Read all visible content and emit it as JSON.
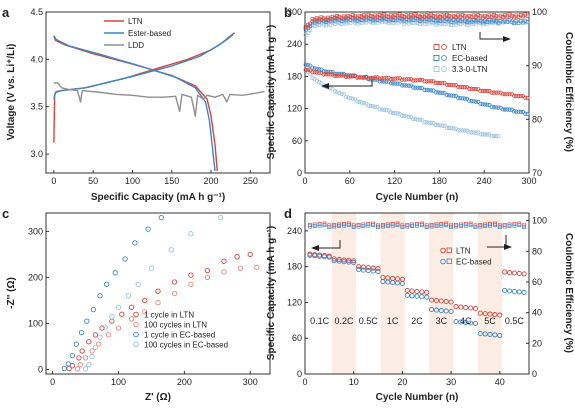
{
  "chart_data": [
    {
      "panel": "a",
      "type": "line",
      "xlabel": "Specific Capacity  (mA h g⁻¹)",
      "ylabel": "Voltage  (V vs. Li⁺/Li)",
      "xlim": [
        -10,
        275
      ],
      "ylim": [
        2.8,
        4.5
      ],
      "xticks": [
        0,
        50,
        100,
        150,
        200,
        250
      ],
      "yticks": [
        3.0,
        3.5,
        4.0,
        4.5
      ],
      "legend": "top-center",
      "series": [
        {
          "name": "LTN",
          "color": "#d8443a",
          "segments": [
            [
              [
                0,
                3.12
              ],
              [
                1,
                3.62
              ],
              [
                3,
                3.66
              ],
              [
                10,
                3.67
              ],
              [
                40,
                3.7
              ],
              [
                90,
                3.8
              ],
              [
                130,
                3.9
              ],
              [
                170,
                4.0
              ],
              [
                200,
                4.1
              ],
              [
                215,
                4.18
              ],
              [
                225,
                4.25
              ],
              [
                230,
                4.28
              ]
            ],
            [
              [
                0,
                4.25
              ],
              [
                2,
                4.2
              ],
              [
                15,
                4.15
              ],
              [
                50,
                4.06
              ],
              [
                100,
                3.95
              ],
              [
                150,
                3.83
              ],
              [
                180,
                3.72
              ],
              [
                195,
                3.58
              ],
              [
                200,
                3.4
              ],
              [
                205,
                3.1
              ],
              [
                208,
                2.82
              ]
            ]
          ]
        },
        {
          "name": "Ester-based",
          "color": "#3a86c8",
          "segments": [
            [
              [
                0,
                3.58
              ],
              [
                2,
                3.65
              ],
              [
                10,
                3.67
              ],
              [
                40,
                3.7
              ],
              [
                100,
                3.82
              ],
              [
                150,
                3.93
              ],
              [
                185,
                4.03
              ],
              [
                210,
                4.15
              ],
              [
                222,
                4.22
              ],
              [
                228,
                4.26
              ]
            ],
            [
              [
                0,
                4.25
              ],
              [
                3,
                4.21
              ],
              [
                20,
                4.14
              ],
              [
                60,
                4.05
              ],
              [
                110,
                3.93
              ],
              [
                155,
                3.81
              ],
              [
                180,
                3.7
              ],
              [
                193,
                3.55
              ],
              [
                198,
                3.35
              ],
              [
                202,
                3.05
              ],
              [
                205,
                2.82
              ]
            ]
          ]
        },
        {
          "name": "LDD",
          "color": "#8f8f8f",
          "segments": [
            [
              [
                0,
                3.75
              ],
              [
                5,
                3.75
              ],
              [
                10,
                3.7
              ],
              [
                20,
                3.68
              ],
              [
                30,
                3.67
              ],
              [
                34,
                3.55
              ],
              [
                36,
                3.67
              ],
              [
                60,
                3.65
              ],
              [
                80,
                3.63
              ],
              [
                100,
                3.62
              ],
              [
                120,
                3.6
              ],
              [
                140,
                3.6
              ],
              [
                155,
                3.61
              ],
              [
                160,
                3.45
              ],
              [
                163,
                3.63
              ],
              [
                175,
                3.6
              ],
              [
                180,
                3.4
              ],
              [
                183,
                3.62
              ],
              [
                190,
                3.58
              ],
              [
                195,
                3.62
              ],
              [
                205,
                3.6
              ],
              [
                215,
                3.63
              ],
              [
                220,
                3.55
              ],
              [
                224,
                3.63
              ],
              [
                240,
                3.62
              ],
              [
                255,
                3.64
              ],
              [
                268,
                3.66
              ]
            ]
          ]
        }
      ]
    },
    {
      "panel": "b",
      "type": "scatter",
      "xlabel": "Cycle Number (n)",
      "ylabel": "Specific Capacity (mA h g⁻¹)",
      "ylabel_right": "Coulombic Efficiency (%)",
      "xlim": [
        0,
        300
      ],
      "ylim": [
        0,
        300
      ],
      "ylim_right": [
        70,
        100
      ],
      "xticks": [
        0,
        60,
        120,
        180,
        240,
        300
      ],
      "yticks": [
        0,
        60,
        120,
        180,
        240,
        300
      ],
      "yticks_right": [
        70,
        80,
        90,
        100
      ],
      "legend": "right",
      "series": [
        {
          "name": "LTN",
          "color": "#d8443a",
          "capacity": [
            [
              1,
              192
            ],
            [
              20,
              186
            ],
            [
              40,
              182
            ],
            [
              60,
              180
            ],
            [
              80,
              178
            ],
            [
              100,
              177
            ],
            [
              120,
              176
            ],
            [
              140,
              174
            ],
            [
              160,
              172
            ],
            [
              180,
              168
            ],
            [
              200,
              163
            ],
            [
              220,
              158
            ],
            [
              240,
              153
            ],
            [
              260,
              149
            ],
            [
              280,
              145
            ],
            [
              300,
              140
            ]
          ],
          "efficiency": [
            [
              1,
              97
            ],
            [
              10,
              98.6
            ],
            [
              50,
              99.1
            ],
            [
              100,
              99.3
            ],
            [
              150,
              99.3
            ],
            [
              200,
              99.2
            ],
            [
              250,
              99.2
            ],
            [
              300,
              99.3
            ]
          ]
        },
        {
          "name": "EC-based",
          "color": "#3a86c8",
          "capacity": [
            [
              1,
              202
            ],
            [
              20,
              192
            ],
            [
              40,
              186
            ],
            [
              60,
              182
            ],
            [
              80,
              177
            ],
            [
              100,
              172
            ],
            [
              120,
              167
            ],
            [
              140,
              162
            ],
            [
              160,
              156
            ],
            [
              180,
              150
            ],
            [
              200,
              143
            ],
            [
              220,
              136
            ],
            [
              240,
              128
            ],
            [
              260,
              121
            ],
            [
              280,
              116
            ],
            [
              300,
              110
            ]
          ],
          "efficiency": [
            [
              1,
              96.5
            ],
            [
              10,
              98.2
            ],
            [
              50,
              98.6
            ],
            [
              100,
              98.7
            ],
            [
              150,
              98.6
            ],
            [
              200,
              98.4
            ],
            [
              250,
              98.3
            ],
            [
              300,
              98.1
            ]
          ]
        },
        {
          "name": "3.3-0-LTN",
          "color": "#9cc2da",
          "capacity": [
            [
              1,
              192
            ],
            [
              10,
              178
            ],
            [
              20,
              168
            ],
            [
              30,
              160
            ],
            [
              40,
              153
            ],
            [
              60,
              140
            ],
            [
              80,
              129
            ],
            [
              100,
              120
            ],
            [
              120,
              112
            ],
            [
              140,
              104
            ],
            [
              160,
              96
            ],
            [
              180,
              89
            ],
            [
              200,
              82
            ],
            [
              220,
              77
            ],
            [
              240,
              72
            ],
            [
              260,
              68
            ]
          ],
          "efficiency": [
            [
              1,
              95.5
            ],
            [
              10,
              97.5
            ],
            [
              50,
              98.0
            ],
            [
              100,
              98.2
            ],
            [
              150,
              98.0
            ],
            [
              200,
              97.8
            ],
            [
              250,
              98.0
            ],
            [
              265,
              98.1
            ]
          ]
        }
      ]
    },
    {
      "panel": "c",
      "type": "scatter",
      "xlabel": "Z' (Ω)",
      "ylabel": "-Z'' (Ω)",
      "xlim": [
        -10,
        330
      ],
      "ylim": [
        -10,
        340
      ],
      "xticks": [
        0,
        100,
        200,
        300
      ],
      "yticks": [
        0,
        100,
        200,
        300
      ],
      "legend": "center-right",
      "series": [
        {
          "name": "1 cycle in LTN",
          "color": "#d8443a",
          "points": [
            [
              25,
              2
            ],
            [
              30,
              8
            ],
            [
              40,
              25
            ],
            [
              45,
              40
            ],
            [
              55,
              60
            ],
            [
              65,
              75
            ],
            [
              75,
              90
            ],
            [
              90,
              105
            ],
            [
              105,
              120
            ],
            [
              120,
              135
            ],
            [
              140,
              150
            ],
            [
              160,
              170
            ],
            [
              185,
              190
            ],
            [
              210,
              205
            ],
            [
              235,
              215
            ],
            [
              260,
              235
            ],
            [
              280,
              245
            ],
            [
              300,
              250
            ]
          ]
        },
        {
          "name": "100 cycles in LTN",
          "color": "#e9877a",
          "points": [
            [
              38,
              1
            ],
            [
              42,
              10
            ],
            [
              50,
              25
            ],
            [
              60,
              40
            ],
            [
              70,
              55
            ],
            [
              85,
              75
            ],
            [
              100,
              90
            ],
            [
              120,
              110
            ],
            [
              140,
              125
            ],
            [
              160,
              145
            ],
            [
              185,
              165
            ],
            [
              210,
              185
            ],
            [
              235,
              200
            ],
            [
              260,
              212
            ],
            [
              285,
              220
            ],
            [
              310,
              222
            ]
          ]
        },
        {
          "name": "1 cycle in EC-based",
          "color": "#3a86c8",
          "points": [
            [
              18,
              2
            ],
            [
              24,
              12
            ],
            [
              30,
              30
            ],
            [
              36,
              55
            ],
            [
              44,
              80
            ],
            [
              52,
              105
            ],
            [
              62,
              130
            ],
            [
              72,
              160
            ],
            [
              82,
              185
            ],
            [
              95,
              210
            ],
            [
              110,
              240
            ],
            [
              125,
              275
            ],
            [
              145,
              305
            ],
            [
              165,
              330
            ]
          ]
        },
        {
          "name": "100 cycles in EC-based",
          "color": "#9cc2da",
          "points": [
            [
              50,
              1
            ],
            [
              55,
              10
            ],
            [
              60,
              28
            ],
            [
              65,
              48
            ],
            [
              72,
              70
            ],
            [
              80,
              92
            ],
            [
              90,
              115
            ],
            [
              100,
              135
            ],
            [
              115,
              160
            ],
            [
              130,
              185
            ],
            [
              150,
              220
            ],
            [
              180,
              260
            ],
            [
              210,
              295
            ],
            [
              255,
              330
            ]
          ]
        }
      ]
    },
    {
      "panel": "d",
      "type": "scatter",
      "xlabel": "Cycle Number (n)",
      "ylabel": "Specific Capacity (mA h g⁻¹)",
      "ylabel_right": "Coulombic Efficiency (%)",
      "xlim": [
        0,
        46
      ],
      "ylim": [
        0,
        270
      ],
      "ylim_right": [
        0,
        105
      ],
      "xticks": [
        0,
        10,
        20,
        30,
        40
      ],
      "yticks": [
        0,
        60,
        120,
        180,
        240
      ],
      "yticks_right": [
        0,
        20,
        40,
        60,
        80,
        100
      ],
      "legend": "top-right",
      "rate_labels": [
        "0.1C",
        "0.2C",
        "0.5C",
        "1C",
        "2C",
        "3C",
        "4C",
        "5C",
        "0.5C"
      ],
      "series": [
        {
          "name": "LTN",
          "color": "#d8443a",
          "capacity_by_rate": [
            201,
            193,
            180,
            162,
            140,
            124,
            113,
            102,
            171
          ],
          "efficiency": 97.5
        },
        {
          "name": "EC-based",
          "color": "#3a86c8",
          "capacity_by_rate": [
            199,
            190,
            175,
            155,
            132,
            108,
            88,
            68,
            140
          ],
          "efficiency": 96.5
        }
      ]
    }
  ]
}
